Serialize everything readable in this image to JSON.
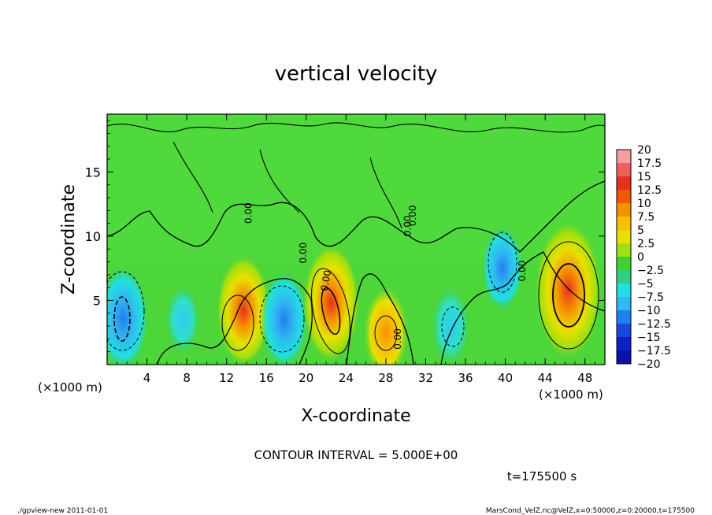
{
  "chart_data": {
    "type": "heatmap",
    "title": "vertical velocity",
    "xlabel": "X-coordinate",
    "ylabel": "Z-coordinate",
    "x_unit_left": "(×1000 m)",
    "x_unit_right": "(×1000 m)",
    "xlim": [
      0,
      50
    ],
    "ylim": [
      0,
      19.5
    ],
    "x_ticks": [
      4,
      8,
      12,
      16,
      20,
      24,
      28,
      32,
      36,
      40,
      44,
      48
    ],
    "y_ticks": [
      5,
      10,
      15
    ],
    "colorbar_levels": [
      "20",
      "17.5",
      "15",
      "12.5",
      "10",
      "7.5",
      "5",
      "2.5",
      "0",
      "−2.5",
      "−5",
      "−7.5",
      "−10",
      "−12.5",
      "−15",
      "−17.5",
      "−20"
    ],
    "colorbar_colors": [
      "#f4a0a0",
      "#ee6060",
      "#e83020",
      "#ef5a00",
      "#f59000",
      "#f8c000",
      "#e8e000",
      "#a0e010",
      "#40d030",
      "#30d080",
      "#20e0e0",
      "#30b8f0",
      "#2080f0",
      "#1848e0",
      "#1020c8",
      "#0a10a8",
      "#7010b8"
    ],
    "contour_labels": [
      "0.00",
      "0.00",
      "0.00",
      "0.00",
      "0.00",
      "0.00",
      "0.00"
    ],
    "contour_interval_label": "CONTOUR INTERVAL = 5.000E+00",
    "time_label": "t=175500 s",
    "blobs": [
      {
        "x": 1.6,
        "z": 3.6,
        "value": -9
      },
      {
        "x": 7.6,
        "z": 3.5,
        "value": -3.5
      },
      {
        "x": 13.7,
        "z": 4.2,
        "value": 10
      },
      {
        "x": 17.8,
        "z": 3.5,
        "value": -8
      },
      {
        "x": 22.5,
        "z": 4.8,
        "value": 11
      },
      {
        "x": 28.0,
        "z": 2.5,
        "value": 7
      },
      {
        "x": 34.5,
        "z": 3.0,
        "value": -5
      },
      {
        "x": 39.7,
        "z": 7.5,
        "value": -6
      },
      {
        "x": 46.3,
        "z": 5.8,
        "value": 14
      }
    ]
  },
  "footer": {
    "left": "./gpview-new  2011-01-01",
    "right": "MarsCond_VelZ.nc@VelZ,x=0:50000,z=0:20000,t=175500"
  }
}
